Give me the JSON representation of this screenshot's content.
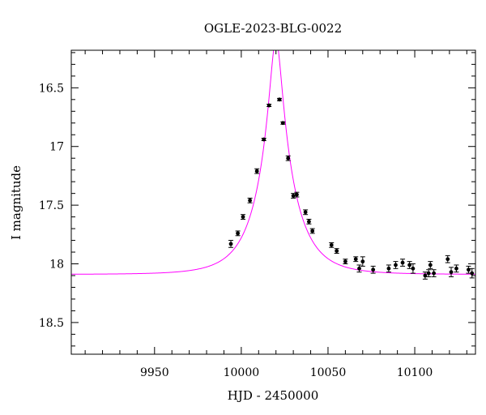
{
  "chart_data": {
    "type": "scatter",
    "title": "OGLE-2023-BLG-0022",
    "xlabel": "HJD - 2450000",
    "ylabel": "I magnitude",
    "xlim": [
      9902,
      10135
    ],
    "ylim": [
      18.77,
      16.18
    ],
    "y_inverted": true,
    "x_ticks": [
      9950,
      10000,
      10050,
      10100
    ],
    "x_tick_labels": [
      "9950",
      "10000",
      "10050",
      "10100"
    ],
    "y_ticks": [
      16.5,
      17,
      17.5,
      18,
      18.5
    ],
    "y_tick_labels": [
      "16.5",
      "17",
      "17.5",
      "18",
      "18.5"
    ],
    "grid": false,
    "legend": "none",
    "series": [
      {
        "kind": "points",
        "color": "#000000",
        "x": [
          9994,
          9998,
          10001,
          10005,
          10009,
          10013,
          10016,
          10022,
          10024,
          10027,
          10030,
          10032,
          10037,
          10039,
          10041,
          10052,
          10055,
          10060,
          10066,
          10068,
          10070,
          10076,
          10085,
          10089,
          10093,
          10097,
          10099,
          10106,
          10108,
          10109,
          10111,
          10119,
          10121,
          10124,
          10131,
          10133
        ],
        "y": [
          17.83,
          17.74,
          17.6,
          17.46,
          17.21,
          16.94,
          16.65,
          16.6,
          16.8,
          17.1,
          17.42,
          17.41,
          17.56,
          17.64,
          17.72,
          17.84,
          17.89,
          17.98,
          17.96,
          18.04,
          17.98,
          18.05,
          18.04,
          18.01,
          17.99,
          18.01,
          18.04,
          18.1,
          18.08,
          18.01,
          18.08,
          17.96,
          18.07,
          18.04,
          18.05,
          18.08
        ],
        "yerr": [
          0.03,
          0.02,
          0.02,
          0.02,
          0.02,
          0.01,
          0.01,
          0.01,
          0.01,
          0.02,
          0.02,
          0.02,
          0.02,
          0.02,
          0.02,
          0.02,
          0.02,
          0.02,
          0.02,
          0.03,
          0.04,
          0.03,
          0.03,
          0.03,
          0.03,
          0.03,
          0.04,
          0.03,
          0.03,
          0.03,
          0.03,
          0.03,
          0.04,
          0.03,
          0.03,
          0.04
        ]
      },
      {
        "kind": "model-curve",
        "color": "#ff00ff",
        "t0": 10020,
        "tE": 20,
        "u0": 0.16,
        "baseline": 18.09
      }
    ]
  }
}
